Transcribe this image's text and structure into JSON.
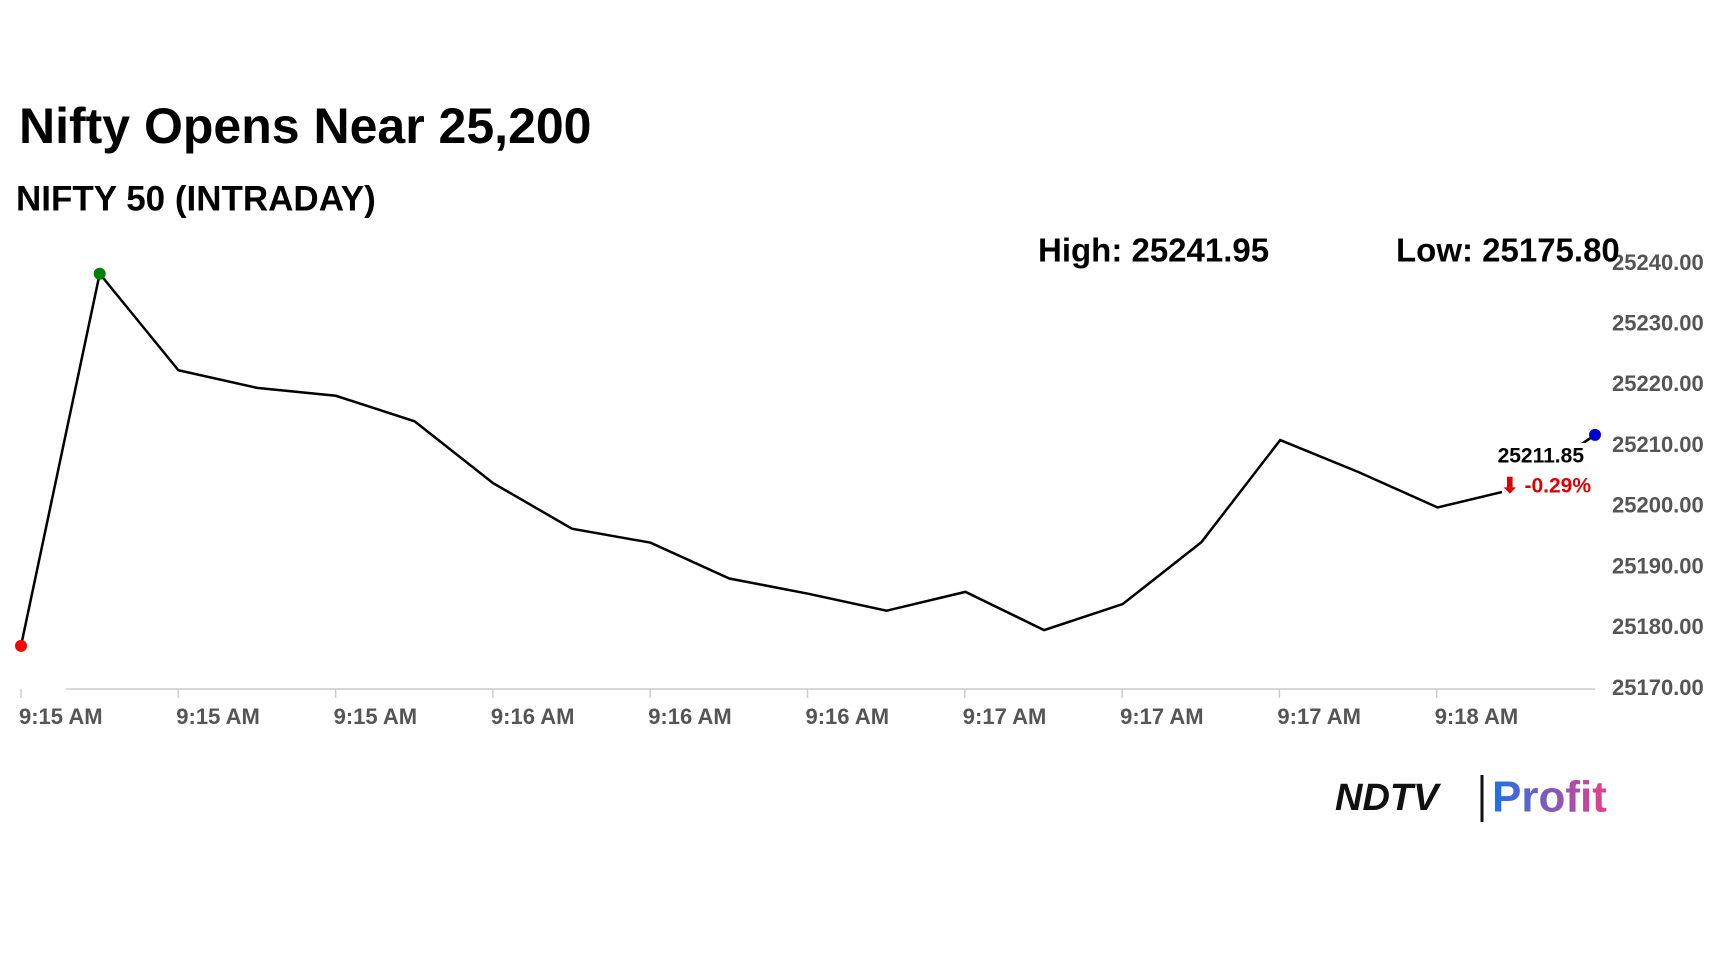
{
  "chart_data": {
    "type": "line",
    "title": "Nifty Opens Near 25,200",
    "subtitle": "NIFTY 50 (INTRADAY)",
    "high_label": "High: 25241.95",
    "low_label": "Low: 25175.80",
    "x_labels": [
      "9:15 AM",
      "9:15 AM",
      "9:15 AM",
      "9:16 AM",
      "9:16 AM",
      "9:16 AM",
      "9:17 AM",
      "9:17 AM",
      "9:17 AM",
      "9:18 AM"
    ],
    "series": [
      {
        "color": "#000000",
        "values": [
          25177.1,
          25238.4,
          25222.5,
          25219.6,
          25218.3,
          25214.1,
          25203.9,
          25196.4,
          25194.1,
          25188.2,
          25185.7,
          25182.9,
          25186.0,
          25179.7,
          25184.0,
          25194.2,
          25211.0,
          25205.7,
          25199.9,
          25203.0,
          25211.85
        ]
      }
    ],
    "change_label": "⬇ -0.29%",
    "marker_colors": {
      "first": "#ff0000",
      "max": "#008000",
      "last": "#0000cc"
    },
    "ylim": [
      25170,
      25240
    ],
    "yticks": [
      {
        "value": 25170,
        "label": "25170.00"
      },
      {
        "value": 25180,
        "label": "25180.00"
      },
      {
        "value": 25190,
        "label": "25190.00"
      },
      {
        "value": 25200,
        "label": "25200.00"
      },
      {
        "value": 25210,
        "label": "25210.00"
      },
      {
        "value": 25220,
        "label": "25220.00"
      },
      {
        "value": 25230,
        "label": "25230.00"
      },
      {
        "value": 25240,
        "label": "25240.00"
      }
    ],
    "logo": {
      "left": "NDTV",
      "right": "Profit"
    }
  }
}
